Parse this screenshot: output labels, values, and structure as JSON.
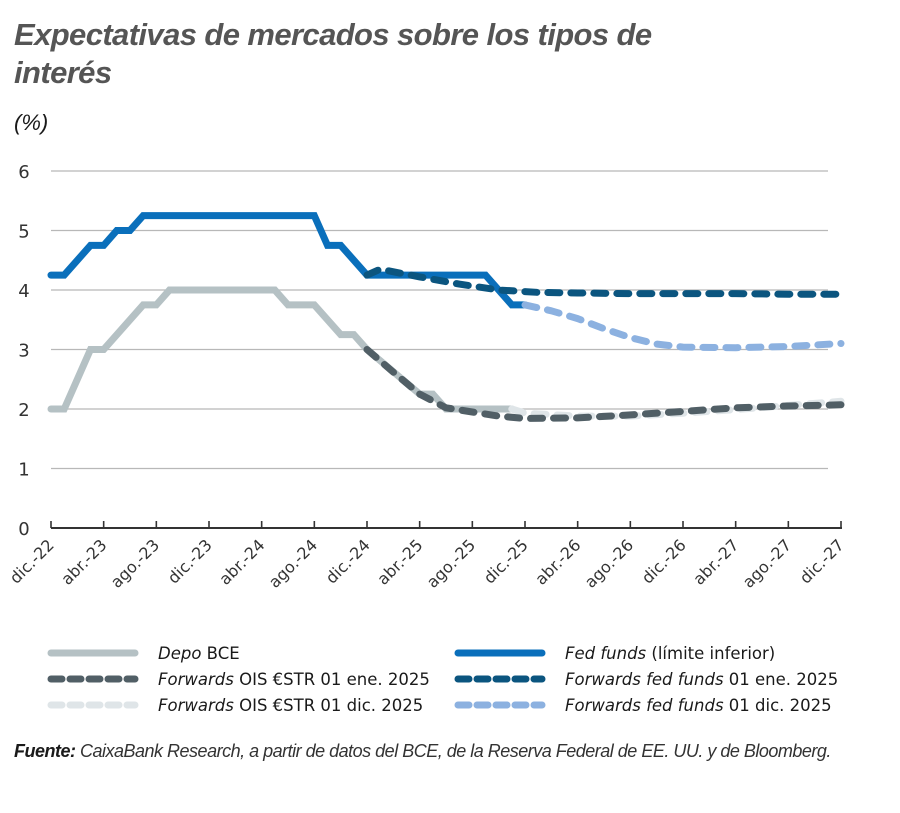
{
  "header": {
    "title": "Expectativas de mercados sobre los tipos de interés",
    "unit": "(%)"
  },
  "colors": {
    "fed_funds": "#0a6fbb",
    "depo_bce": "#b5c1c4",
    "forwards_ois_ene": "#515f66",
    "forwards_ois_dic": "#dfe5e8",
    "forwards_fed_ene": "#0b557f",
    "forwards_fed_dic": "#8cb1e0",
    "grid": "#b8b8b8",
    "axis": "#333333"
  },
  "legend": {
    "items": [
      {
        "key": "depo_bce",
        "italic": "Depo",
        "rest": " BCE"
      },
      {
        "key": "fed_funds",
        "italic": "Fed funds",
        "rest": " (límite inferior)"
      },
      {
        "key": "forwards_ois_ene",
        "italic": "Forwards",
        "rest": " OIS €STR 01 ene. 2025"
      },
      {
        "key": "forwards_fed_ene",
        "italic": "Forwards fed funds",
        "rest": " 01 ene. 2025"
      },
      {
        "key": "forwards_ois_dic",
        "italic": "Forwards",
        "rest": " OIS €STR 01 dic. 2025"
      },
      {
        "key": "forwards_fed_dic",
        "italic": "Forwards fed funds",
        "rest": " 01 dic. 2025"
      }
    ]
  },
  "source": {
    "label": "Fuente:",
    "text": " CaixaBank Research, a partir de datos del BCE, de la Reserva Federal de EE. UU. y de Bloomberg."
  },
  "chart_data": {
    "type": "line",
    "title": "Expectativas de mercados sobre los tipos de interés",
    "xlabel": "",
    "ylabel": "(%)",
    "ylim": [
      0,
      6
    ],
    "yticks": [
      0,
      1,
      2,
      3,
      4,
      5,
      6
    ],
    "grid": true,
    "legend_position": "bottom",
    "categories": [
      "dic.-22",
      "abr.-23",
      "ago.-23",
      "dic.-23",
      "abr.-24",
      "ago.-24",
      "dic.-24",
      "abr.-25",
      "ago.-25",
      "dic.-25",
      "abr.-26",
      "ago.-26",
      "dic.-26",
      "abr.-27",
      "ago.-27",
      "dic.-27"
    ],
    "x_note": "x values are months since dic.-22 (0 = dic.-22, 60 = dic.-27)",
    "series": [
      {
        "name": "Depo BCE",
        "style": "solid",
        "x": [
          0,
          1,
          3,
          4,
          7,
          8,
          9,
          17,
          18,
          20,
          22,
          23,
          24,
          28,
          29,
          30,
          35
        ],
        "values": [
          2.0,
          2.0,
          3.0,
          3.0,
          3.75,
          3.75,
          4.0,
          4.0,
          3.75,
          3.75,
          3.25,
          3.25,
          3.0,
          2.25,
          2.25,
          2.0,
          2.0
        ]
      },
      {
        "name": "Fed funds (límite inferior)",
        "style": "solid",
        "x": [
          0,
          1,
          3,
          4,
          5,
          6,
          7,
          20,
          21,
          22,
          24,
          33,
          35,
          36
        ],
        "values": [
          4.25,
          4.25,
          4.75,
          4.75,
          5.0,
          5.0,
          5.25,
          5.25,
          4.75,
          4.75,
          4.25,
          4.25,
          3.75,
          3.75
        ]
      },
      {
        "name": "Forwards OIS €STR 01 ene. 2025",
        "style": "dashed",
        "x": [
          24,
          26,
          28,
          30,
          32,
          34,
          36,
          40,
          44,
          48,
          52,
          56,
          60
        ],
        "values": [
          3.0,
          2.62,
          2.25,
          2.02,
          1.95,
          1.88,
          1.84,
          1.85,
          1.9,
          1.96,
          2.02,
          2.05,
          2.07
        ]
      },
      {
        "name": "Forwards OIS €STR 01 dic. 2025",
        "style": "dashed",
        "x": [
          35,
          36,
          40,
          44,
          48,
          52,
          56,
          60
        ],
        "values": [
          2.0,
          1.93,
          1.88,
          1.88,
          1.93,
          1.99,
          2.06,
          2.13
        ]
      },
      {
        "name": "Forwards fed funds 01 ene. 2025",
        "style": "dashed",
        "x": [
          24,
          25,
          28,
          31,
          34,
          37,
          40,
          44,
          48,
          52,
          56,
          60
        ],
        "values": [
          4.25,
          4.35,
          4.22,
          4.1,
          4.0,
          3.96,
          3.95,
          3.94,
          3.94,
          3.94,
          3.93,
          3.93
        ]
      },
      {
        "name": "Forwards fed funds 01 dic. 2025",
        "style": "dashed",
        "x": [
          36,
          38,
          40,
          42,
          44,
          46,
          48,
          52,
          56,
          60
        ],
        "values": [
          3.75,
          3.65,
          3.52,
          3.35,
          3.2,
          3.09,
          3.04,
          3.03,
          3.05,
          3.1
        ]
      }
    ]
  }
}
